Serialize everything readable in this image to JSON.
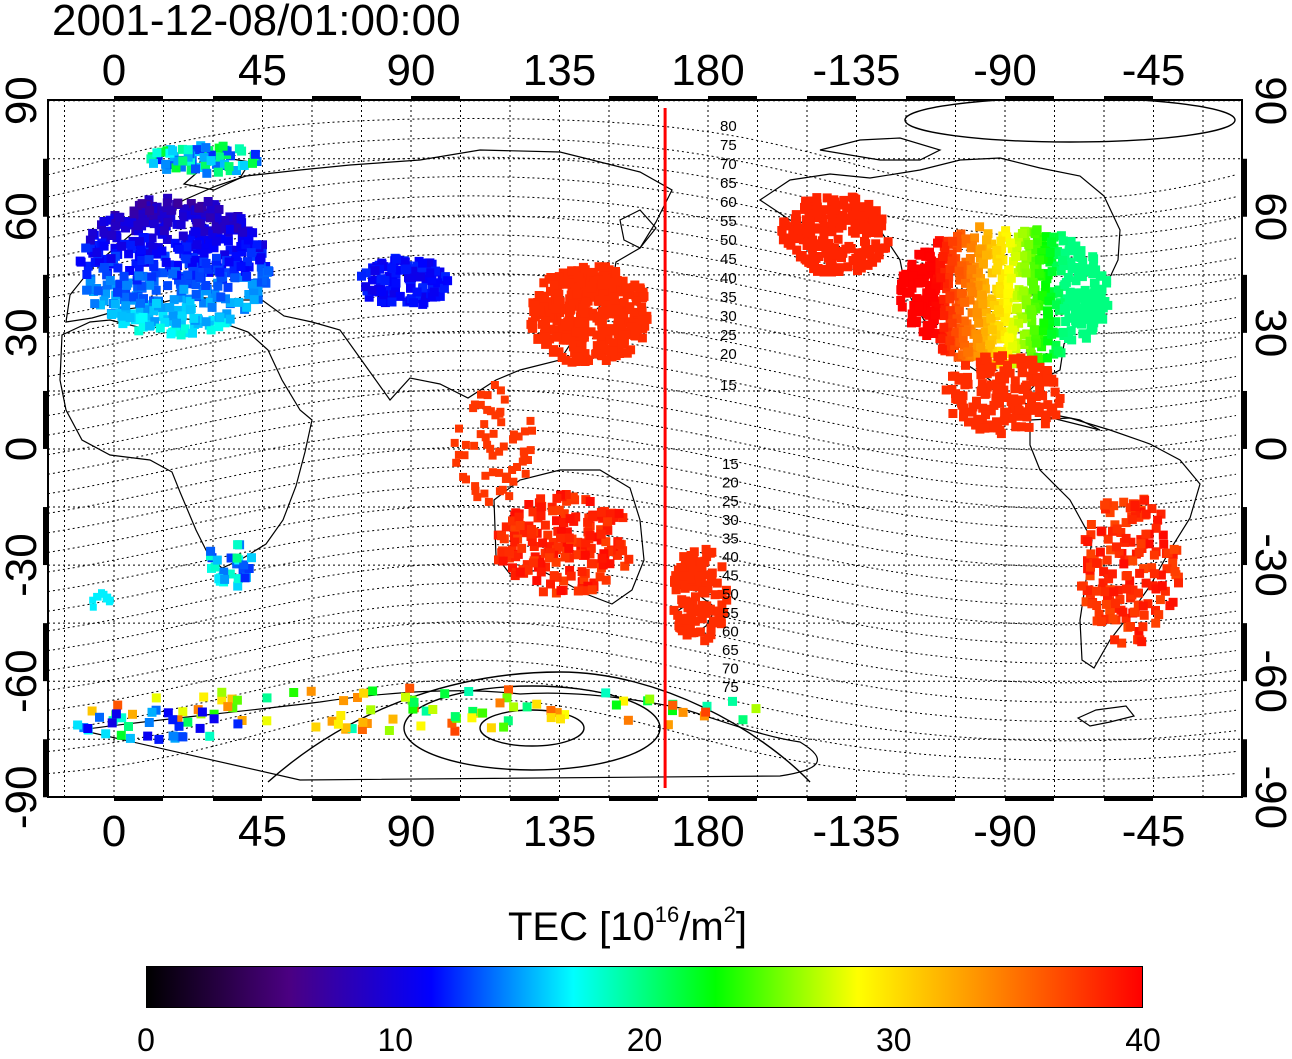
{
  "title": "2001-12-08/01:00:00",
  "map": {
    "lon_ticks": [
      "0",
      "45",
      "90",
      "135",
      "180",
      "-135",
      "-90",
      "-45"
    ],
    "lat_ticks": [
      "90",
      "60",
      "30",
      "0",
      "-30",
      "-60",
      "-90"
    ],
    "terminator_line": {
      "color": "#ff0000",
      "longitude": 167
    },
    "contour_labels_north": [
      "80",
      "75",
      "70",
      "65",
      "60",
      "55",
      "50",
      "45",
      "40",
      "35",
      "30",
      "25",
      "20",
      "15"
    ],
    "contour_labels_south": [
      "15",
      "20",
      "25",
      "30",
      "35",
      "40",
      "45",
      "50",
      "55",
      "60",
      "65",
      "70",
      "75"
    ]
  },
  "colorbar": {
    "title_prefix": "TEC  [10",
    "title_exp1": "16",
    "title_mid": "/m",
    "title_exp2": "2",
    "title_suffix": "]",
    "min": 0,
    "max": 40,
    "ticks": [
      "0",
      "10",
      "20",
      "30",
      "40"
    ],
    "colors": [
      "#000000",
      "#4b0082",
      "#0000ff",
      "#00ffff",
      "#00ff00",
      "#ffff00",
      "#ff8000",
      "#ff0000"
    ]
  }
}
